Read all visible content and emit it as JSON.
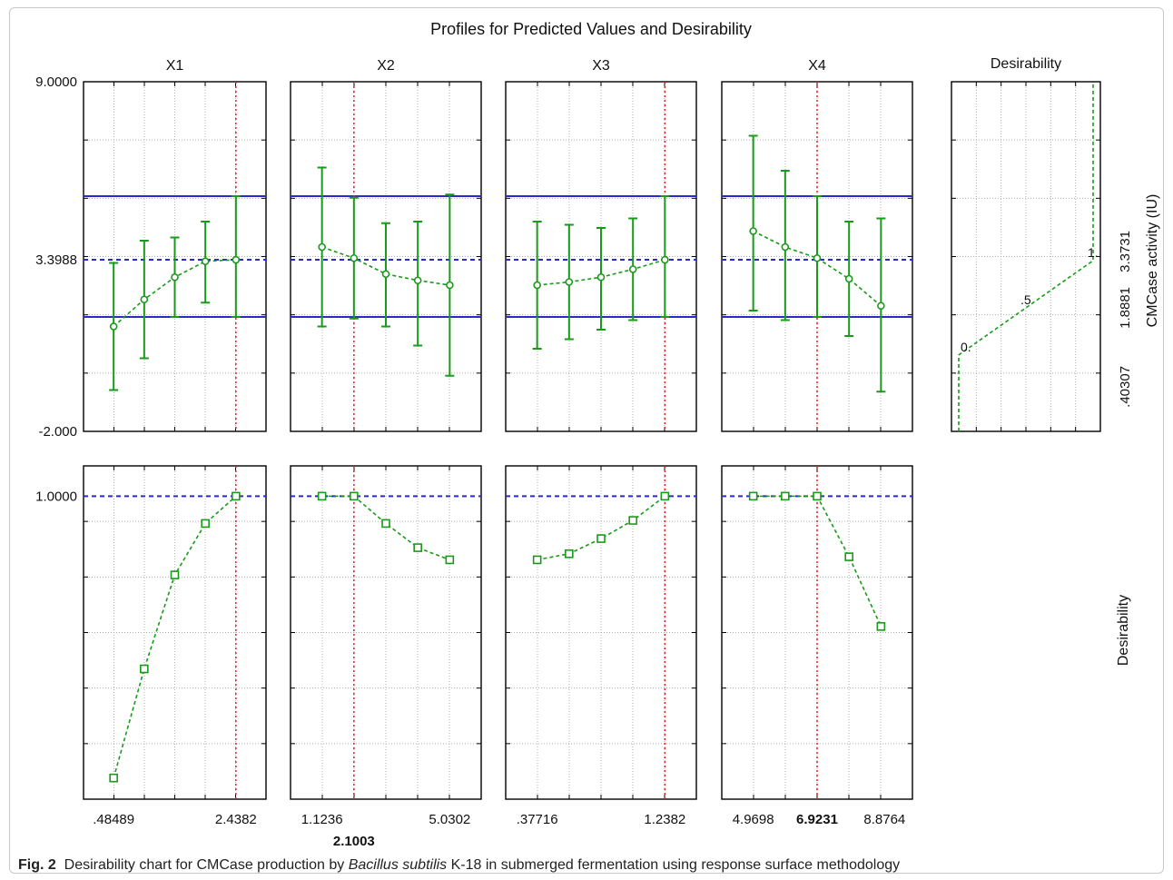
{
  "title": "Profiles for Predicted Values and Desirability",
  "colors": {
    "series": "#1a9a1a",
    "spec": "#2a2acc",
    "current": "#e02020",
    "grid": "#b0b0b0",
    "axis": "#000000"
  },
  "response": {
    "label": "CMCase activity (IU)",
    "ylim": [
      -2.0,
      9.0
    ],
    "tick_labels": [
      "9.0000",
      "3.3988",
      "-2.000"
    ],
    "current": 3.3988,
    "spec_low": 1.6,
    "spec_high": 5.4
  },
  "desirability_row": {
    "label": "Desirability",
    "ylim": [
      0.0,
      1.1
    ],
    "tick_labels": [
      "1.0000"
    ],
    "current": 1.0
  },
  "desirability_function": {
    "title": "Desirability",
    "breakpoints": [
      {
        "x": 0,
        "y": 0.40307
      },
      {
        "x": 0.5,
        "y": 1.8881
      },
      {
        "x": 1,
        "y": 3.3731
      }
    ],
    "breakpoint_labels": [
      "0.",
      ".5",
      "1."
    ],
    "axis_labels": [
      ".40307",
      "1.8881",
      "3.3731"
    ]
  },
  "chart_data": [
    {
      "type": "line",
      "factor": "X1",
      "x": [
        0.48489,
        0.97322,
        1.46155,
        1.94988,
        2.4382
      ],
      "tick_labels": [
        ".48489",
        "2.4382"
      ],
      "current": 2.4382,
      "current_label": "",
      "predicted": [
        1.3,
        2.15,
        2.85,
        3.35,
        3.3988
      ],
      "ci_low": [
        -0.7,
        0.3,
        1.6,
        2.05,
        1.6
      ],
      "ci_high": [
        3.3,
        4.0,
        4.1,
        4.6,
        5.4
      ],
      "desirability": [
        0.07,
        0.43,
        0.74,
        0.91,
        1.0
      ]
    },
    {
      "type": "line",
      "factor": "X2",
      "x": [
        1.1236,
        2.1003,
        3.07695,
        4.0536,
        5.0302
      ],
      "tick_labels": [
        "1.1236",
        "5.0302"
      ],
      "current": 2.1003,
      "current_label": "2.1003",
      "predicted": [
        3.8,
        3.45,
        2.95,
        2.75,
        2.6
      ],
      "ci_low": [
        1.3,
        1.55,
        1.3,
        0.7,
        -0.25
      ],
      "ci_high": [
        6.3,
        5.35,
        4.55,
        4.6,
        5.45
      ],
      "desirability": [
        1.0,
        1.0,
        0.91,
        0.83,
        0.79
      ]
    },
    {
      "type": "line",
      "factor": "X3",
      "x": [
        0.37716,
        0.59242,
        0.80768,
        1.02294,
        1.2382
      ],
      "tick_labels": [
        ".37716",
        "1.2382"
      ],
      "current": 1.2382,
      "current_label": "",
      "predicted": [
        2.6,
        2.7,
        2.85,
        3.1,
        3.3988
      ],
      "ci_low": [
        0.6,
        0.9,
        1.2,
        1.5,
        1.6
      ],
      "ci_high": [
        4.6,
        4.5,
        4.4,
        4.7,
        5.4
      ],
      "desirability": [
        0.79,
        0.81,
        0.86,
        0.92,
        1.0
      ]
    },
    {
      "type": "line",
      "factor": "X4",
      "x": [
        4.9698,
        5.94645,
        6.9231,
        7.89975,
        8.8764
      ],
      "tick_labels": [
        "4.9698",
        "8.8764"
      ],
      "current": 6.9231,
      "current_label": "6.9231",
      "predicted": [
        4.3,
        3.8,
        3.45,
        2.8,
        1.95
      ],
      "ci_low": [
        1.8,
        1.5,
        1.6,
        1.0,
        -0.75
      ],
      "ci_high": [
        7.3,
        6.2,
        5.4,
        4.6,
        4.7
      ],
      "desirability": [
        1.0,
        1.0,
        1.0,
        0.8,
        0.57
      ]
    }
  ],
  "caption": {
    "label": "Fig. 2",
    "before": "Desirability chart for CMCase production by ",
    "organism": "Bacillus subtilis",
    "after": " K-18 in submerged fermentation using response surface methodology"
  }
}
